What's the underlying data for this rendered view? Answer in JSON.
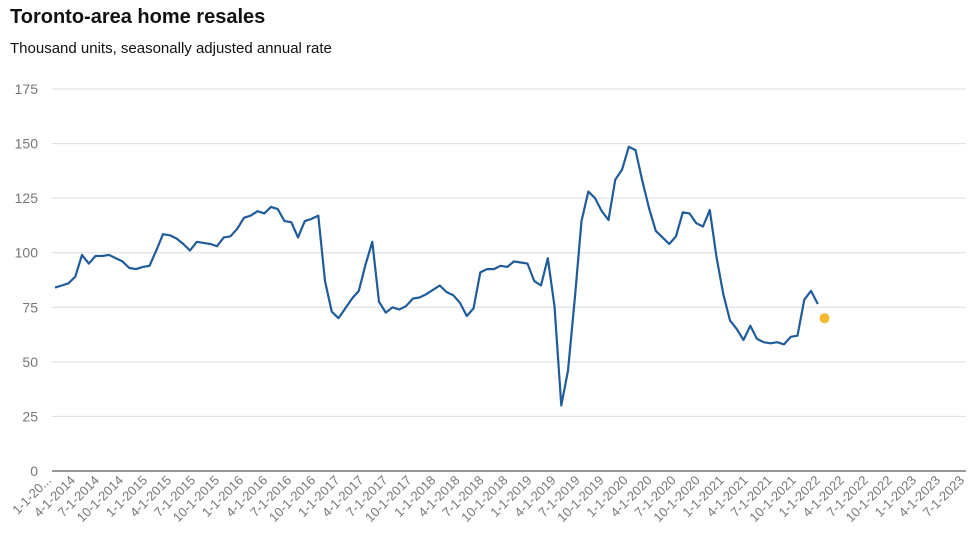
{
  "title": "Toronto-area home resales",
  "subtitle": "Thousand units, seasonally adjusted annual rate",
  "colors": {
    "line": "#1f5c99",
    "marker": "#f5b82e",
    "grid": "#dcdcdc"
  },
  "chart_data": {
    "type": "line",
    "title": "Toronto-area home resales",
    "subtitle": "Thousand units, seasonally adjusted annual rate",
    "ylim": [
      0,
      175
    ],
    "yticks": [
      0,
      25,
      50,
      75,
      100,
      125,
      150,
      175
    ],
    "grid": true,
    "x_labels": [
      "1-1-20...",
      "4-1-2014",
      "7-1-2014",
      "10-1-2014",
      "1-1-2015",
      "4-1-2015",
      "7-1-2015",
      "10-1-2015",
      "1-1-2016",
      "4-1-2016",
      "7-1-2016",
      "10-1-2016",
      "1-1-2017",
      "4-1-2017",
      "7-1-2017",
      "10-1-2017",
      "1-1-2018",
      "4-1-2018",
      "7-1-2018",
      "10-1-2018",
      "1-1-2019",
      "4-1-2019",
      "7-1-2019",
      "10-1-2019",
      "1-1-2020",
      "4-1-2020",
      "7-1-2020",
      "10-1-2020",
      "1-1-2021",
      "4-1-2021",
      "7-1-2021",
      "10-1-2021",
      "1-1-2022",
      "4-1-2022",
      "7-1-2022",
      "10-1-2022",
      "1-1-2023",
      "4-1-2023",
      "7-1-2023"
    ],
    "x": [
      "2014-01",
      "2014-02",
      "2014-03",
      "2014-04",
      "2014-05",
      "2014-06",
      "2014-07",
      "2014-08",
      "2014-09",
      "2014-10",
      "2014-11",
      "2014-12",
      "2015-01",
      "2015-02",
      "2015-03",
      "2015-04",
      "2015-05",
      "2015-06",
      "2015-07",
      "2015-08",
      "2015-09",
      "2015-10",
      "2015-11",
      "2015-12",
      "2016-01",
      "2016-02",
      "2016-03",
      "2016-04",
      "2016-05",
      "2016-06",
      "2016-07",
      "2016-08",
      "2016-09",
      "2016-10",
      "2016-11",
      "2016-12",
      "2017-01",
      "2017-02",
      "2017-03",
      "2017-04",
      "2017-05",
      "2017-06",
      "2017-07",
      "2017-08",
      "2017-09",
      "2017-10",
      "2017-11",
      "2017-12",
      "2018-01",
      "2018-02",
      "2018-03",
      "2018-04",
      "2018-05",
      "2018-06",
      "2018-07",
      "2018-08",
      "2018-09",
      "2018-10",
      "2018-11",
      "2018-12",
      "2019-01",
      "2019-02",
      "2019-03",
      "2019-04",
      "2019-05",
      "2019-06",
      "2019-07",
      "2019-08",
      "2019-09",
      "2019-10",
      "2019-11",
      "2019-12",
      "2020-01",
      "2020-02",
      "2020-03",
      "2020-04",
      "2020-05",
      "2020-06",
      "2020-07",
      "2020-08",
      "2020-09",
      "2020-10",
      "2020-11",
      "2020-12",
      "2021-01",
      "2021-02",
      "2021-03",
      "2021-04",
      "2021-05",
      "2021-06",
      "2021-07",
      "2021-08",
      "2021-09",
      "2021-10",
      "2021-11",
      "2021-12",
      "2022-01",
      "2022-02",
      "2022-03",
      "2022-04",
      "2022-05",
      "2022-06",
      "2022-07",
      "2022-08",
      "2022-09",
      "2022-10",
      "2022-11",
      "2022-12",
      "2023-01",
      "2023-02",
      "2023-03",
      "2023-04",
      "2023-05",
      "2023-06"
    ],
    "series": [
      {
        "values": [
          84,
          85,
          86,
          89,
          99,
          95,
          98.5,
          98.5,
          99,
          97.5,
          96,
          93,
          92.5,
          93.5,
          94,
          101,
          108.5,
          108,
          106.5,
          104,
          101,
          105,
          104.5,
          104,
          103,
          107,
          107.5,
          111,
          116,
          117,
          119,
          118,
          121,
          120,
          114.5,
          114,
          107,
          114.5,
          115.5,
          117,
          87,
          73,
          70,
          74.5,
          79,
          82.5,
          94.5,
          105,
          77.5,
          72.5,
          75,
          74,
          75.5,
          79,
          79.5,
          81,
          83,
          85,
          82,
          80.5,
          77,
          71,
          74.5,
          91,
          92.5,
          92.5,
          94,
          93.5,
          96,
          95.5,
          95,
          87,
          85,
          97.5,
          75.5,
          30,
          46,
          79,
          114.5,
          128,
          125,
          119,
          115,
          133.5,
          138,
          148.5,
          147,
          133,
          120.5,
          110,
          107,
          104,
          107.5,
          118.5,
          118,
          113.5,
          112,
          119.5,
          98,
          81,
          69,
          65,
          60,
          66.5,
          60.5,
          59,
          58.5,
          59,
          58,
          61.5,
          62,
          78.5,
          82.5,
          76.5
        ]
      }
    ],
    "highlight_point": {
      "x": "2023-07",
      "y": 70
    }
  }
}
